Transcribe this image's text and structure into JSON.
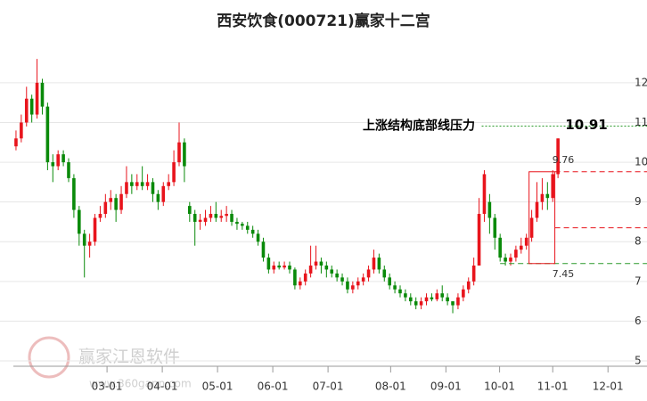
{
  "chart_data": {
    "type": "candlestick",
    "title": "西安饮食(000721)赢家十二宫",
    "watermark": {
      "name": "赢家江恩软件",
      "url": "www.360gann.com"
    },
    "ylim": [
      5,
      13
    ],
    "yticks": [
      5,
      6,
      7,
      8,
      9,
      10,
      11,
      12
    ],
    "xlim": [
      -0.5,
      118
    ],
    "xticks": [
      {
        "value": 17.3,
        "label": "03-01"
      },
      {
        "value": 27.8,
        "label": "04-01"
      },
      {
        "value": 38.3,
        "label": "05-01"
      },
      {
        "value": 48.8,
        "label": "06-01"
      },
      {
        "value": 59.3,
        "label": "07-01"
      },
      {
        "value": 71.2,
        "label": "08-01"
      },
      {
        "value": 81.7,
        "label": "09-01"
      },
      {
        "value": 91.9,
        "label": "10-01"
      },
      {
        "value": 102,
        "label": "11-01"
      },
      {
        "value": 112.5,
        "label": "12-01"
      }
    ],
    "grid": true,
    "up_color": "#e8141c",
    "down_color": "#0a8a0a",
    "ohlc": [
      [
        10.4,
        10.8,
        10.3,
        10.6
      ],
      [
        10.6,
        11.2,
        10.5,
        11.0
      ],
      [
        11.0,
        11.9,
        10.9,
        11.6
      ],
      [
        11.6,
        11.7,
        11.0,
        11.2
      ],
      [
        11.2,
        12.6,
        11.1,
        12.0
      ],
      [
        12.0,
        12.1,
        11.2,
        11.4
      ],
      [
        11.4,
        11.5,
        9.8,
        10.0
      ],
      [
        10.0,
        10.2,
        9.5,
        9.9
      ],
      [
        9.9,
        10.3,
        9.8,
        10.2
      ],
      [
        10.2,
        10.3,
        9.9,
        10.0
      ],
      [
        10.0,
        10.1,
        9.5,
        9.6
      ],
      [
        9.6,
        9.7,
        8.6,
        8.8
      ],
      [
        8.8,
        8.9,
        7.9,
        8.2
      ],
      [
        8.2,
        8.3,
        7.1,
        7.9
      ],
      [
        7.9,
        8.2,
        7.6,
        8.0
      ],
      [
        8.0,
        8.7,
        7.9,
        8.6
      ],
      [
        8.6,
        8.9,
        8.5,
        8.7
      ],
      [
        8.7,
        9.2,
        8.6,
        9.0
      ],
      [
        9.0,
        9.3,
        8.8,
        9.1
      ],
      [
        9.1,
        9.2,
        8.5,
        8.8
      ],
      [
        8.8,
        9.4,
        8.7,
        9.2
      ],
      [
        9.2,
        9.9,
        9.1,
        9.5
      ],
      [
        9.5,
        9.7,
        9.2,
        9.4
      ],
      [
        9.4,
        9.7,
        9.3,
        9.5
      ],
      [
        9.5,
        9.9,
        9.3,
        9.4
      ],
      [
        9.4,
        9.7,
        9.3,
        9.5
      ],
      [
        9.5,
        9.6,
        9.0,
        9.2
      ],
      [
        9.2,
        9.3,
        8.8,
        9.0
      ],
      [
        9.0,
        9.5,
        8.9,
        9.4
      ],
      [
        9.4,
        9.7,
        9.3,
        9.5
      ],
      [
        9.5,
        10.3,
        9.4,
        10.0
      ],
      [
        10.0,
        11.0,
        9.9,
        10.5
      ],
      [
        10.5,
        10.6,
        9.5,
        9.9
      ],
      [
        8.9,
        9.0,
        8.5,
        8.7
      ],
      [
        8.7,
        8.8,
        7.9,
        8.5
      ],
      [
        8.5,
        8.7,
        8.3,
        8.55
      ],
      [
        8.5,
        8.8,
        8.4,
        8.6
      ],
      [
        8.6,
        8.9,
        8.5,
        8.7
      ],
      [
        8.7,
        9.0,
        8.5,
        8.6
      ],
      [
        8.6,
        8.8,
        8.5,
        8.65
      ],
      [
        8.65,
        8.9,
        8.5,
        8.7
      ],
      [
        8.7,
        8.8,
        8.4,
        8.5
      ],
      [
        8.5,
        8.6,
        8.3,
        8.45
      ],
      [
        8.45,
        8.5,
        8.3,
        8.4
      ],
      [
        8.4,
        8.5,
        8.2,
        8.3
      ],
      [
        8.3,
        8.4,
        8.1,
        8.2
      ],
      [
        8.2,
        8.3,
        7.9,
        8.0
      ],
      [
        8.0,
        8.1,
        7.5,
        7.6
      ],
      [
        7.6,
        7.7,
        7.2,
        7.3
      ],
      [
        7.3,
        7.5,
        7.2,
        7.4
      ],
      [
        7.4,
        7.5,
        7.3,
        7.35
      ],
      [
        7.35,
        7.5,
        7.3,
        7.4
      ],
      [
        7.4,
        7.5,
        7.2,
        7.3
      ],
      [
        7.3,
        7.35,
        6.8,
        6.9
      ],
      [
        6.9,
        7.1,
        6.8,
        7.0
      ],
      [
        7.0,
        7.3,
        6.9,
        7.2
      ],
      [
        7.2,
        7.9,
        7.1,
        7.4
      ],
      [
        7.4,
        7.9,
        7.3,
        7.5
      ],
      [
        7.5,
        7.6,
        7.2,
        7.4
      ],
      [
        7.4,
        7.5,
        7.1,
        7.3
      ],
      [
        7.3,
        7.4,
        7.1,
        7.2
      ],
      [
        7.2,
        7.3,
        7.0,
        7.1
      ],
      [
        7.1,
        7.2,
        6.9,
        7.0
      ],
      [
        7.0,
        7.1,
        6.7,
        6.8
      ],
      [
        6.8,
        7.0,
        6.7,
        6.9
      ],
      [
        6.9,
        7.1,
        6.8,
        7.0
      ],
      [
        7.0,
        7.2,
        6.9,
        7.1
      ],
      [
        7.1,
        7.4,
        7.0,
        7.3
      ],
      [
        7.3,
        7.8,
        7.2,
        7.6
      ],
      [
        7.6,
        7.7,
        7.2,
        7.3
      ],
      [
        7.3,
        7.4,
        7.0,
        7.1
      ],
      [
        7.1,
        7.2,
        6.8,
        6.9
      ],
      [
        6.9,
        7.0,
        6.7,
        6.8
      ],
      [
        6.8,
        6.9,
        6.6,
        6.7
      ],
      [
        6.7,
        6.8,
        6.5,
        6.6
      ],
      [
        6.6,
        6.7,
        6.4,
        6.5
      ],
      [
        6.5,
        6.6,
        6.3,
        6.4
      ],
      [
        6.4,
        6.6,
        6.3,
        6.5
      ],
      [
        6.5,
        6.7,
        6.4,
        6.6
      ],
      [
        6.6,
        6.7,
        6.5,
        6.55
      ],
      [
        6.55,
        6.8,
        6.5,
        6.7
      ],
      [
        6.7,
        6.9,
        6.5,
        6.6
      ],
      [
        6.6,
        6.7,
        6.4,
        6.5
      ],
      [
        6.5,
        6.5,
        6.2,
        6.4
      ],
      [
        6.4,
        6.7,
        6.3,
        6.6
      ],
      [
        6.6,
        6.9,
        6.5,
        6.8
      ],
      [
        6.8,
        7.1,
        6.7,
        7.0
      ],
      [
        7.0,
        7.6,
        6.9,
        7.4
      ],
      [
        7.4,
        9.1,
        7.4,
        8.7
      ],
      [
        8.7,
        9.8,
        8.5,
        9.7
      ],
      [
        9.0,
        9.2,
        8.2,
        8.6
      ],
      [
        8.6,
        8.7,
        7.8,
        8.1
      ],
      [
        8.1,
        8.2,
        7.5,
        7.6
      ],
      [
        7.6,
        7.7,
        7.4,
        7.5
      ],
      [
        7.5,
        7.7,
        7.4,
        7.6
      ],
      [
        7.6,
        7.9,
        7.5,
        7.8
      ],
      [
        7.8,
        8.1,
        7.7,
        7.9
      ],
      [
        7.9,
        8.2,
        7.8,
        8.1
      ],
      [
        8.1,
        8.8,
        8.0,
        8.6
      ],
      [
        8.6,
        9.5,
        8.5,
        9.0
      ],
      [
        9.0,
        9.6,
        8.8,
        9.2
      ],
      [
        9.2,
        9.5,
        8.8,
        9.1
      ],
      [
        9.1,
        9.8,
        9.0,
        9.7
      ],
      [
        9.7,
        10.6,
        9.6,
        10.6
      ]
    ],
    "levels": [
      {
        "name": "上涨结构底部线压力",
        "value": 10.91,
        "label": "10.91",
        "color": "#2a9a2a"
      },
      {
        "value": 9.76,
        "label": "9.76",
        "color": "#e8141c"
      },
      {
        "value": 8.35,
        "color": "#e8141c"
      },
      {
        "value": 7.45,
        "label": "7.45",
        "color": "#2a9a2a"
      }
    ]
  }
}
